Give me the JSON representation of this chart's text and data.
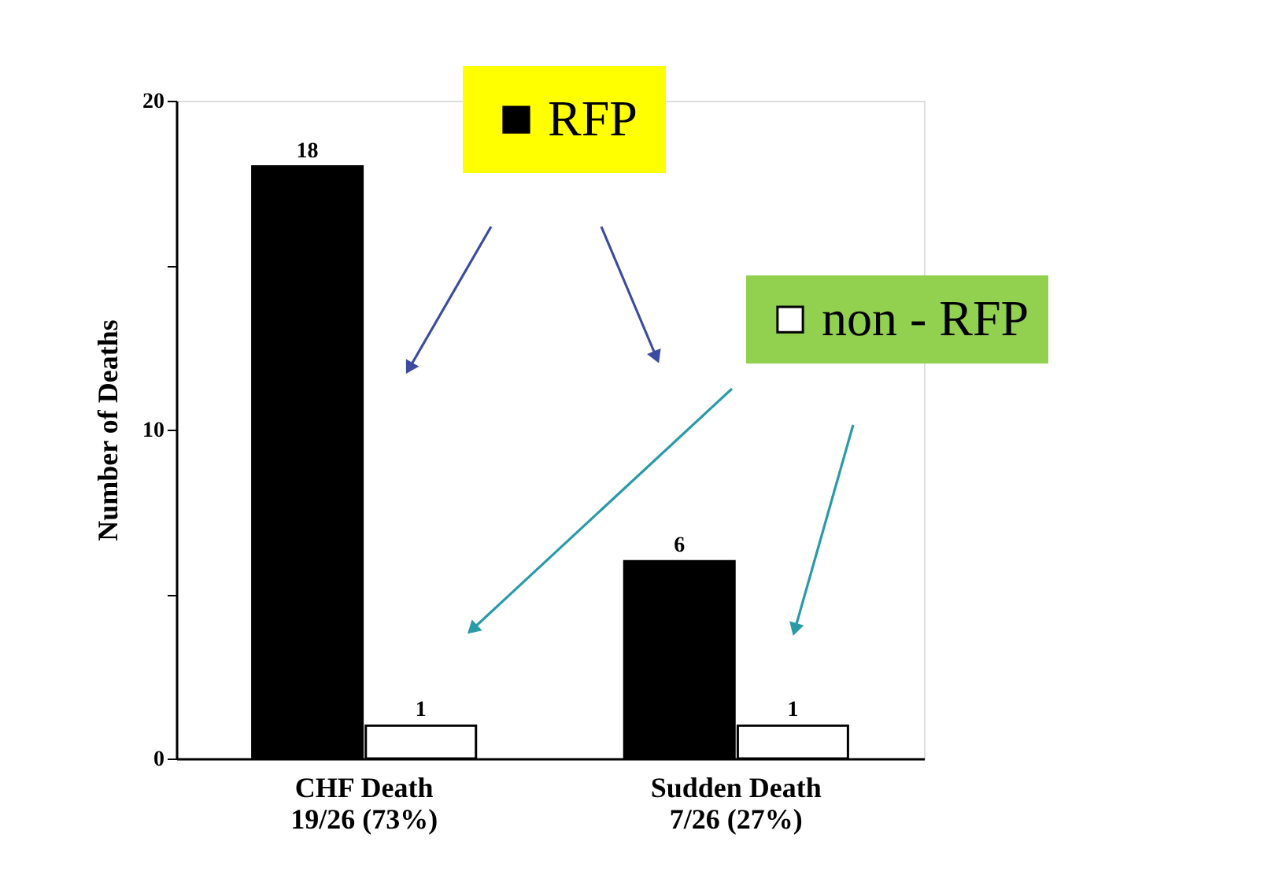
{
  "chart_data": {
    "type": "bar",
    "ylabel": "Number of Deaths",
    "categories": [
      "CHF Death\n19/26 (73%)",
      "Sudden Death\n7/26 (27%)"
    ],
    "series": [
      {
        "name": "RFP",
        "color": "#000000",
        "values": [
          18,
          6
        ]
      },
      {
        "name": "non - RFP",
        "color": "#ffffff",
        "values": [
          1,
          1
        ]
      }
    ],
    "ylim": [
      0,
      20
    ],
    "yticks": [
      0,
      {
        "value": 5,
        "label": null
      },
      10,
      {
        "value": 15,
        "label": null
      },
      20
    ],
    "data_labels": true,
    "grid": false,
    "legend": "top right"
  }
}
